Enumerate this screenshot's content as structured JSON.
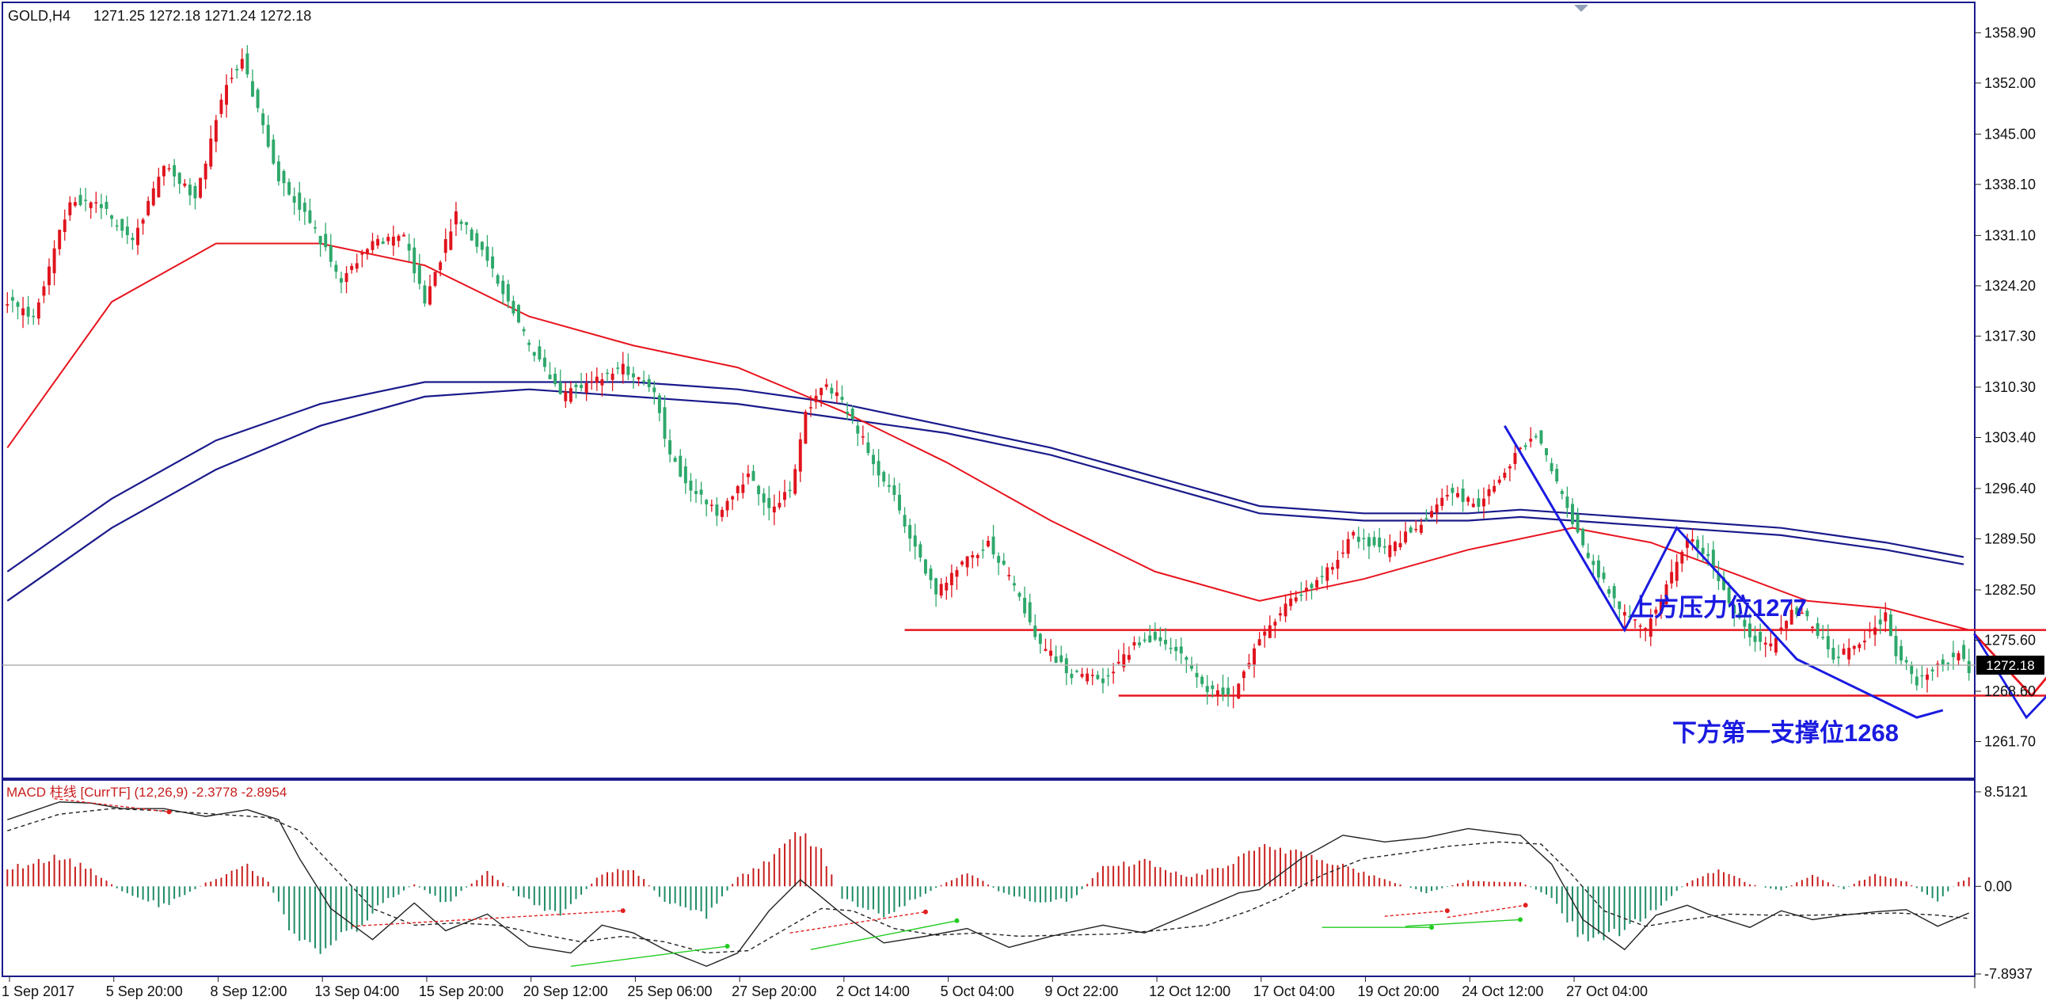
{
  "header": {
    "symbol_label": "GOLD,H4",
    "ohlc": "1271.25 1272.18 1271.24 1272.18"
  },
  "chart_data": [
    {
      "type": "candlestick",
      "symbol": "GOLD",
      "timeframe": "H4",
      "ylim": [
        1258.5,
        1361.0
      ],
      "grid": false,
      "y_ticks": [
        "1358.90",
        "1352.00",
        "1345.00",
        "1338.10",
        "1331.10",
        "1324.20",
        "1317.30",
        "1310.30",
        "1303.40",
        "1296.40",
        "1289.50",
        "1282.50",
        "1275.60",
        "1268.60",
        "1261.70"
      ],
      "x_ticks": [
        "1 Sep 2017",
        "5 Sep 20:00",
        "8 Sep 12:00",
        "13 Sep 04:00",
        "15 Sep 20:00",
        "20 Sep 12:00",
        "25 Sep 06:00",
        "27 Sep 20:00",
        "2 Oct 14:00",
        "5 Oct 04:00",
        "9 Oct 22:00",
        "12 Oct 12:00",
        "17 Oct 04:00",
        "19 Oct 20:00",
        "24 Oct 12:00",
        "27 Oct 04:00"
      ],
      "current_price": 1272.18,
      "current_price_label": "1272.18",
      "colors": {
        "bull": "#e0141e",
        "bear": "#2ea86b",
        "ma_fast": "#e8141e",
        "ma_slow": "#1a1a8c",
        "level": "#e8141e",
        "zigzag": "#1a1ae0",
        "path_red": "#e8141e",
        "path_blue": "#1a1ae0"
      },
      "resistance": {
        "value": 1277,
        "label": "上方压力位1277"
      },
      "support": {
        "value": 1268,
        "label": "下方第一支撑位1268"
      },
      "close_anchors": [
        [
          0,
          1322
        ],
        [
          5,
          1320
        ],
        [
          12,
          1336
        ],
        [
          18,
          1335
        ],
        [
          24,
          1330
        ],
        [
          30,
          1341
        ],
        [
          36,
          1336
        ],
        [
          42,
          1352
        ],
        [
          45,
          1355
        ],
        [
          48,
          1348
        ],
        [
          52,
          1339
        ],
        [
          58,
          1333
        ],
        [
          64,
          1325
        ],
        [
          70,
          1330
        ],
        [
          76,
          1331
        ],
        [
          80,
          1322
        ],
        [
          86,
          1334
        ],
        [
          92,
          1328
        ],
        [
          96,
          1322
        ],
        [
          100,
          1316
        ],
        [
          106,
          1309
        ],
        [
          112,
          1311
        ],
        [
          118,
          1313
        ],
        [
          124,
          1310
        ],
        [
          126,
          1303
        ],
        [
          130,
          1297
        ],
        [
          136,
          1293
        ],
        [
          142,
          1298
        ],
        [
          146,
          1294
        ],
        [
          150,
          1296
        ],
        [
          153,
          1307
        ],
        [
          157,
          1311
        ],
        [
          162,
          1306
        ],
        [
          166,
          1300
        ],
        [
          170,
          1295
        ],
        [
          174,
          1288
        ],
        [
          178,
          1282
        ],
        [
          183,
          1286
        ],
        [
          188,
          1289
        ],
        [
          193,
          1283
        ],
        [
          198,
          1275
        ],
        [
          204,
          1271
        ],
        [
          210,
          1270
        ],
        [
          216,
          1275
        ],
        [
          220,
          1276
        ],
        [
          226,
          1273
        ],
        [
          230,
          1269
        ],
        [
          235,
          1268
        ],
        [
          240,
          1276
        ],
        [
          246,
          1281
        ],
        [
          252,
          1284
        ],
        [
          258,
          1290
        ],
        [
          264,
          1288
        ],
        [
          270,
          1291
        ],
        [
          276,
          1296
        ],
        [
          282,
          1294
        ],
        [
          288,
          1300
        ],
        [
          293,
          1304
        ],
        [
          297,
          1297
        ],
        [
          303,
          1287
        ],
        [
          309,
          1280
        ],
        [
          314,
          1277
        ],
        [
          318,
          1283
        ],
        [
          322,
          1290
        ],
        [
          326,
          1287
        ],
        [
          330,
          1281
        ],
        [
          334,
          1276
        ],
        [
          338,
          1275
        ],
        [
          342,
          1280
        ],
        [
          346,
          1278
        ],
        [
          350,
          1273
        ],
        [
          356,
          1276
        ],
        [
          360,
          1279
        ],
        [
          362,
          1274
        ],
        [
          366,
          1270
        ],
        [
          370,
          1272
        ],
        [
          374,
          1274
        ],
        [
          376,
          1271
        ]
      ],
      "ma_fast_pts": [
        [
          0,
          1302
        ],
        [
          20,
          1322
        ],
        [
          40,
          1330
        ],
        [
          60,
          1330
        ],
        [
          80,
          1327
        ],
        [
          100,
          1320
        ],
        [
          120,
          1316
        ],
        [
          140,
          1313
        ],
        [
          160,
          1307
        ],
        [
          180,
          1300
        ],
        [
          200,
          1292
        ],
        [
          220,
          1285
        ],
        [
          240,
          1281
        ],
        [
          260,
          1284
        ],
        [
          280,
          1288
        ],
        [
          300,
          1291
        ],
        [
          315,
          1289
        ],
        [
          330,
          1285
        ],
        [
          345,
          1281
        ],
        [
          360,
          1280
        ],
        [
          376,
          1277
        ]
      ],
      "ma_slow_a": [
        [
          0,
          1285
        ],
        [
          20,
          1295
        ],
        [
          40,
          1303
        ],
        [
          60,
          1308
        ],
        [
          80,
          1311
        ],
        [
          100,
          1311
        ],
        [
          120,
          1311
        ],
        [
          140,
          1310
        ],
        [
          160,
          1308
        ],
        [
          180,
          1305
        ],
        [
          200,
          1302
        ],
        [
          220,
          1298
        ],
        [
          240,
          1294
        ],
        [
          260,
          1293
        ],
        [
          280,
          1293
        ],
        [
          290,
          1293.5
        ],
        [
          300,
          1293
        ],
        [
          320,
          1292
        ],
        [
          340,
          1291
        ],
        [
          360,
          1289
        ],
        [
          375,
          1287
        ]
      ],
      "ma_slow_b": [
        [
          0,
          1281
        ],
        [
          20,
          1291
        ],
        [
          40,
          1299
        ],
        [
          60,
          1305
        ],
        [
          80,
          1309
        ],
        [
          100,
          1310
        ],
        [
          120,
          1309
        ],
        [
          140,
          1308
        ],
        [
          160,
          1306
        ],
        [
          180,
          1304
        ],
        [
          200,
          1301
        ],
        [
          220,
          1297
        ],
        [
          240,
          1293
        ],
        [
          260,
          1292
        ],
        [
          280,
          1292
        ],
        [
          290,
          1292.5
        ],
        [
          300,
          1292
        ],
        [
          320,
          1291
        ],
        [
          340,
          1290
        ],
        [
          360,
          1288
        ],
        [
          375,
          1286
        ]
      ],
      "zigzag": [
        [
          287,
          1305
        ],
        [
          310,
          1277
        ],
        [
          320,
          1291
        ],
        [
          343,
          1273
        ],
        [
          366,
          1265
        ],
        [
          371,
          1266
        ]
      ],
      "projection_red": [
        [
          377,
          1276.5
        ],
        [
          388,
          1268
        ],
        [
          395,
          1274
        ],
        [
          402,
          1271
        ],
        [
          416,
          1277
        ]
      ],
      "projection_blue": [
        [
          377,
          1276.5
        ],
        [
          387,
          1265
        ],
        [
          391,
          1268
        ],
        [
          400,
          1260
        ]
      ],
      "resistance_span": [
        172,
        456
      ],
      "support_span": [
        213,
        456
      ]
    },
    {
      "type": "histogram+line",
      "indicator": "MACD",
      "label": "MACD 柱线 [CurrTF] (12,26,9) -2.3778 -2.8954",
      "ylim": [
        -7.8937,
        8.5121
      ],
      "y_ticks": [
        "8.5121",
        "0.00",
        "-7.8937"
      ],
      "colors": {
        "positive": "#c81e1e",
        "negative": "#1e8c64",
        "macd": "#222222",
        "signal": "#222222",
        "div_green": "#22cc22",
        "div_red": "#e02020"
      },
      "histogram_anchors": [
        [
          0,
          1.6
        ],
        [
          10,
          2.6
        ],
        [
          16,
          1.5
        ],
        [
          22,
          -0.5
        ],
        [
          30,
          -1.8
        ],
        [
          38,
          0.3
        ],
        [
          46,
          1.8
        ],
        [
          50,
          0.4
        ],
        [
          54,
          -3.5
        ],
        [
          60,
          -5.8
        ],
        [
          66,
          -4
        ],
        [
          72,
          -1.5
        ],
        [
          78,
          0.2
        ],
        [
          84,
          -1.6
        ],
        [
          92,
          1.4
        ],
        [
          98,
          -0.8
        ],
        [
          106,
          -2.6
        ],
        [
          114,
          1.2
        ],
        [
          120,
          1.6
        ],
        [
          126,
          -1.4
        ],
        [
          134,
          -2.6
        ],
        [
          140,
          0.8
        ],
        [
          146,
          2.2
        ],
        [
          152,
          4.9
        ],
        [
          156,
          3
        ],
        [
          160,
          -1
        ],
        [
          168,
          -2.8
        ],
        [
          176,
          -0.6
        ],
        [
          184,
          1.3
        ],
        [
          190,
          -0.4
        ],
        [
          196,
          -1.4
        ],
        [
          204,
          -1.2
        ],
        [
          210,
          1.6
        ],
        [
          218,
          2.3
        ],
        [
          226,
          0.8
        ],
        [
          234,
          1.9
        ],
        [
          240,
          3.4
        ],
        [
          248,
          3.2
        ],
        [
          256,
          1.9
        ],
        [
          264,
          0.6
        ],
        [
          272,
          -0.6
        ],
        [
          280,
          0.5
        ],
        [
          290,
          0.4
        ],
        [
          296,
          -1
        ],
        [
          302,
          -5
        ],
        [
          310,
          -4.2
        ],
        [
          318,
          -1.2
        ],
        [
          322,
          0.3
        ],
        [
          328,
          1.6
        ],
        [
          334,
          0.2
        ],
        [
          340,
          -0.4
        ],
        [
          346,
          1.1
        ],
        [
          352,
          -0.3
        ],
        [
          358,
          1.2
        ],
        [
          364,
          0.4
        ],
        [
          370,
          -1.3
        ],
        [
          374,
          0.4
        ],
        [
          376,
          0.8
        ]
      ],
      "macd_anchors": [
        [
          0,
          6
        ],
        [
          10,
          7.6
        ],
        [
          16,
          7.5
        ],
        [
          22,
          7
        ],
        [
          30,
          7
        ],
        [
          38,
          6.3
        ],
        [
          46,
          6.9
        ],
        [
          52,
          6
        ],
        [
          56,
          2.5
        ],
        [
          62,
          -2
        ],
        [
          70,
          -4.8
        ],
        [
          78,
          -1.5
        ],
        [
          84,
          -4
        ],
        [
          92,
          -2.5
        ],
        [
          100,
          -5.4
        ],
        [
          108,
          -6
        ],
        [
          114,
          -3.5
        ],
        [
          120,
          -4.2
        ],
        [
          126,
          -5.7
        ],
        [
          134,
          -7.2
        ],
        [
          140,
          -6
        ],
        [
          146,
          -2.2
        ],
        [
          152,
          0.6
        ],
        [
          160,
          -2.5
        ],
        [
          168,
          -5.1
        ],
        [
          176,
          -4.5
        ],
        [
          184,
          -3.8
        ],
        [
          192,
          -5.5
        ],
        [
          200,
          -4.5
        ],
        [
          210,
          -3.5
        ],
        [
          218,
          -4.2
        ],
        [
          228,
          -2.2
        ],
        [
          236,
          -0.6
        ],
        [
          240,
          -0.3
        ],
        [
          248,
          2.5
        ],
        [
          256,
          4.6
        ],
        [
          264,
          4
        ],
        [
          272,
          4.4
        ],
        [
          280,
          5.2
        ],
        [
          290,
          4.6
        ],
        [
          296,
          2
        ],
        [
          302,
          -3
        ],
        [
          310,
          -5.7
        ],
        [
          316,
          -2.6
        ],
        [
          322,
          -1.7
        ],
        [
          326,
          -2.5
        ],
        [
          334,
          -3.7
        ],
        [
          340,
          -2.2
        ],
        [
          346,
          -3
        ],
        [
          352,
          -2.6
        ],
        [
          358,
          -2.3
        ],
        [
          364,
          -2.1
        ],
        [
          370,
          -3.6
        ],
        [
          376,
          -2.4
        ]
      ],
      "signal_anchors": [
        [
          0,
          5
        ],
        [
          10,
          6.5
        ],
        [
          20,
          7
        ],
        [
          30,
          6.8
        ],
        [
          40,
          6.5
        ],
        [
          50,
          6.2
        ],
        [
          56,
          5
        ],
        [
          62,
          2
        ],
        [
          70,
          -2
        ],
        [
          78,
          -3.5
        ],
        [
          86,
          -3.3
        ],
        [
          94,
          -3.5
        ],
        [
          102,
          -4.3
        ],
        [
          110,
          -5
        ],
        [
          118,
          -4.5
        ],
        [
          126,
          -5
        ],
        [
          134,
          -6
        ],
        [
          142,
          -5.8
        ],
        [
          150,
          -3.6
        ],
        [
          156,
          -2
        ],
        [
          162,
          -2.2
        ],
        [
          170,
          -3.8
        ],
        [
          178,
          -4.4
        ],
        [
          186,
          -4.2
        ],
        [
          194,
          -4.5
        ],
        [
          202,
          -4.4
        ],
        [
          212,
          -4.3
        ],
        [
          220,
          -4
        ],
        [
          230,
          -3.5
        ],
        [
          238,
          -2.2
        ],
        [
          244,
          -1
        ],
        [
          252,
          1
        ],
        [
          260,
          2.5
        ],
        [
          268,
          3
        ],
        [
          276,
          3.6
        ],
        [
          286,
          4
        ],
        [
          294,
          3.8
        ],
        [
          300,
          1
        ],
        [
          306,
          -2.2
        ],
        [
          314,
          -3.6
        ],
        [
          322,
          -3
        ],
        [
          330,
          -2.5
        ],
        [
          338,
          -2.6
        ],
        [
          346,
          -2.6
        ],
        [
          354,
          -2.5
        ],
        [
          362,
          -2.4
        ],
        [
          370,
          -2.6
        ],
        [
          376,
          -2.9
        ]
      ],
      "divergences": [
        {
          "color": "green",
          "from": [
            108,
            -7.2
          ],
          "to": [
            138,
            -5.4
          ]
        },
        {
          "color": "green",
          "from": [
            154,
            -5.7
          ],
          "to": [
            182,
            -3.1
          ]
        },
        {
          "color": "red",
          "from": [
            66,
            -3.6
          ],
          "to": [
            118,
            -2.2
          ]
        },
        {
          "color": "red",
          "from": [
            150,
            -4.2
          ],
          "to": [
            176,
            -2.3
          ]
        },
        {
          "color": "red",
          "from": [
            9,
            7.9
          ],
          "to": [
            31,
            6.7
          ]
        },
        {
          "color": "green",
          "from": [
            252,
            -3.7
          ],
          "to": [
            273,
            -3.7
          ]
        },
        {
          "color": "green",
          "from": [
            268,
            -3.6
          ],
          "to": [
            290,
            -3
          ]
        },
        {
          "color": "red",
          "from": [
            276,
            -2.8
          ],
          "to": [
            291,
            -1.7
          ]
        },
        {
          "color": "red",
          "from": [
            264,
            -2.7
          ],
          "to": [
            276,
            -2.2
          ]
        }
      ]
    }
  ]
}
